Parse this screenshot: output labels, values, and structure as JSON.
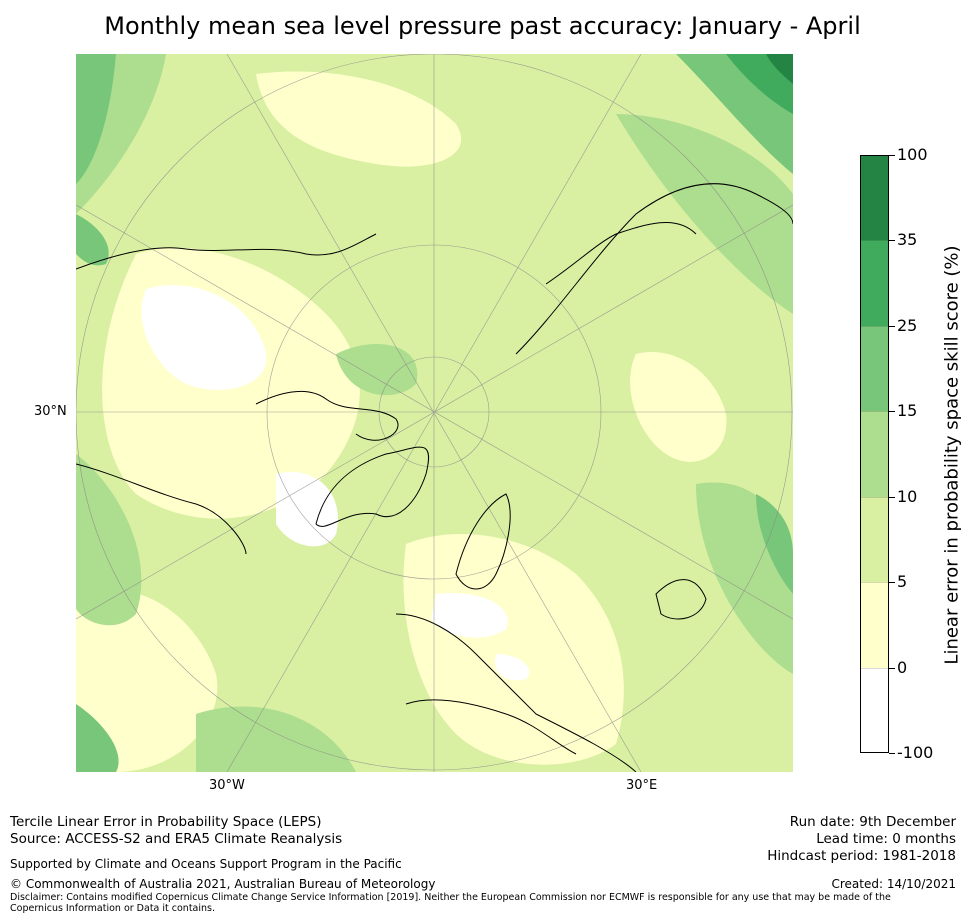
{
  "title": "Monthly mean sea level pressure past accuracy: January - April",
  "axis_labels": {
    "left_lat": "30°N",
    "bottom_west": "30°W",
    "bottom_east": "30°E"
  },
  "chart_data": {
    "type": "heatmap",
    "projection": "north polar stereographic",
    "title": "Monthly mean sea level pressure past accuracy: January - April",
    "colorbar": {
      "label": "Linear error in probability space skill score (%)",
      "bounds": [
        "-100",
        "0",
        "5",
        "10",
        "15",
        "25",
        "35",
        "100"
      ],
      "colors": [
        "#ffffff",
        "#ffffcc",
        "#d9f0a3",
        "#addd8e",
        "#78c679",
        "#41ab5d",
        "#238443"
      ]
    },
    "grid_labels": [
      "30°N",
      "30°W",
      "30°E"
    ]
  },
  "colors": {
    "ocean_base": "#d9f0a3",
    "coast": "#000000",
    "grid": "#888888"
  },
  "footer": {
    "left_line1": "Tercile Linear Error in Probability Space (LEPS)",
    "left_line2": "Source: ACCESS-S2 and ERA5 Climate Reanalysis",
    "supported": "Supported by Climate and Oceans Support Program in the Pacific",
    "copyright": "© Commonwealth of Australia 2021, Australian Bureau of Meteorology",
    "disclaimer": "Disclaimer: Contains modified Copernicus Climate Change Service Information [2019]. Neither the European Commission nor ECMWF is responsible for any use that may be made of the Copernicus Information or Data it contains.",
    "run_date": "Run date: 9th December",
    "lead_time": "Lead time: 0 months",
    "hindcast": "Hindcast period: 1981-2018",
    "created": "Created: 14/10/2021"
  }
}
